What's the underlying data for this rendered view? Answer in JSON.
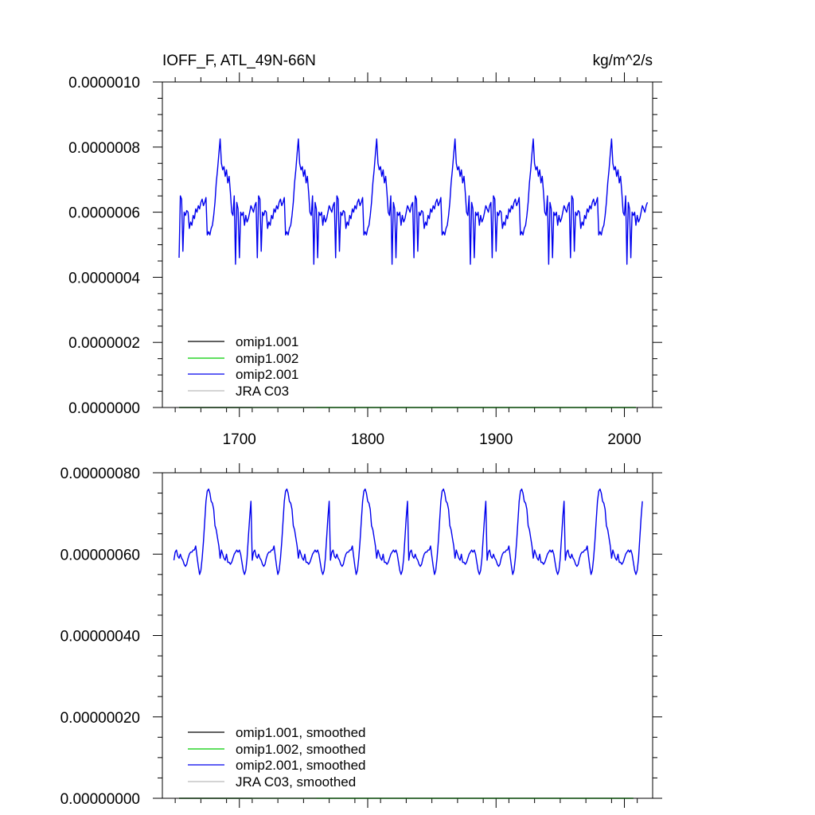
{
  "chart_data": [
    {
      "type": "line",
      "title_left": "IOFF_F, ATL_49N-66N",
      "title_right": "kg/m^2/s",
      "xlim": [
        1640,
        2022
      ],
      "ylim": [
        0,
        1e-06
      ],
      "x_ticks": [
        1700,
        1800,
        1900,
        2000
      ],
      "x_tick_labels": [
        "1700",
        "1800",
        "1900",
        "2000"
      ],
      "y_ticks": [
        0,
        2e-07,
        4e-07,
        6e-07,
        8e-07,
        1e-06
      ],
      "y_tick_labels": [
        "0.0000000",
        "0.0000002",
        "0.0000004",
        "0.0000006",
        "0.0000008",
        "0.0000010"
      ],
      "legend_position": "bottom-left",
      "legend": [
        "omip1.001",
        "omip1.002",
        "omip2.001",
        "JRA C03"
      ],
      "colors": [
        "#000000",
        "#00cc00",
        "#0000ee",
        "#bbbbbb"
      ],
      "series": [
        {
          "name": "omip1.001",
          "color": "#000000",
          "x": [
            1653,
            1710
          ],
          "y": [
            0,
            0
          ]
        },
        {
          "name": "omip1.002",
          "color": "#00cc00",
          "x": [
            1653,
            2009
          ],
          "y": [
            0,
            0
          ]
        },
        {
          "name": "omip2.001",
          "color": "#0000ee",
          "cycle_start": 1653,
          "cycle_length": 61,
          "cycles": 6,
          "x_end": 2018,
          "cycle_offsets": [
            0,
            1,
            2,
            3,
            4,
            5,
            6,
            7,
            8,
            9,
            10,
            11,
            12,
            13,
            14,
            15,
            16,
            17,
            18,
            19,
            20,
            21,
            22,
            23,
            24,
            25,
            26,
            27,
            28,
            29,
            30,
            31,
            32,
            33,
            34,
            35,
            36,
            37,
            38,
            39,
            40,
            41,
            42,
            43,
            44,
            45,
            46,
            47,
            48,
            49,
            50,
            51,
            52,
            53,
            54,
            55,
            56,
            57,
            58,
            59,
            60
          ],
          "cycle_values": [
            4.6e-07,
            6.5e-07,
            6.4e-07,
            4.8e-07,
            6e-07,
            5.9e-07,
            6.05e-07,
            6e-07,
            5.5e-07,
            5.7e-07,
            5.6e-07,
            5.9e-07,
            5.8e-07,
            6.1e-07,
            6e-07,
            6.2e-07,
            6.1e-07,
            6.3e-07,
            6.4e-07,
            6.2e-07,
            6.3e-07,
            6.45e-07,
            5.3e-07,
            5.4e-07,
            5.3e-07,
            5.5e-07,
            5.6e-07,
            5.9e-07,
            6.3e-07,
            6.9e-07,
            7.3e-07,
            7.8e-07,
            8.25e-07,
            7.5e-07,
            7.3e-07,
            7.4e-07,
            7.1e-07,
            7.3e-07,
            6.9e-07,
            7.1e-07,
            6.6e-07,
            6e-07,
            5.9e-07,
            6.5e-07,
            4.4e-07,
            6.3e-07,
            6.1e-07,
            4.6e-07,
            6e-07,
            5.9e-07,
            6e-07,
            5.6e-07,
            5.9e-07,
            5.7e-07,
            5.8e-07,
            6e-07,
            6.2e-07,
            6.1e-07,
            6e-07,
            6.2e-07,
            6.3e-07
          ]
        },
        {
          "name": "JRA C03",
          "color": "#bbbbbb",
          "x": [
            1653,
            1760
          ],
          "y": [
            0,
            0
          ]
        }
      ]
    },
    {
      "type": "line",
      "title_left": "",
      "title_right": "",
      "xlim": [
        1640,
        2022
      ],
      "ylim": [
        0,
        8e-07
      ],
      "x_ticks": [
        1700,
        1800,
        1900,
        2000
      ],
      "y_ticks": [
        0,
        2e-07,
        4e-07,
        6e-07,
        8e-07
      ],
      "y_tick_labels": [
        "0.00000000",
        "0.00000020",
        "0.00000040",
        "0.00000060",
        "0.00000080"
      ],
      "legend_position": "bottom-left",
      "legend": [
        "omip1.001, smoothed",
        "omip1.002, smoothed",
        "omip2.001, smoothed",
        "JRA C03, smoothed"
      ],
      "colors": [
        "#000000",
        "#00cc00",
        "#0000ee",
        "#bbbbbb"
      ],
      "series": [
        {
          "name": "omip1.001, smoothed",
          "color": "#000000",
          "x": [
            1653,
            1710
          ],
          "y": [
            0,
            0
          ]
        },
        {
          "name": "omip1.002, smoothed",
          "color": "#00cc00",
          "x": [
            1653,
            2007
          ],
          "y": [
            0,
            0
          ]
        },
        {
          "name": "omip2.001, smoothed",
          "color": "#0000ee",
          "cycle_start": 1649,
          "cycle_length": 61,
          "cycles": 6,
          "x_end": 2017,
          "cycle_offsets": [
            0,
            1,
            2,
            3,
            4,
            5,
            6,
            7,
            8,
            9,
            10,
            11,
            12,
            13,
            14,
            15,
            16,
            17,
            18,
            19,
            20,
            21,
            22,
            23,
            24,
            25,
            26,
            27,
            28,
            29,
            30,
            31,
            32,
            33,
            34,
            35,
            36,
            37,
            38,
            39,
            40,
            41,
            42,
            43,
            44,
            45,
            46,
            47,
            48,
            49,
            50,
            51,
            52,
            53,
            54,
            55,
            56,
            57,
            58,
            59,
            60
          ],
          "cycle_values": [
            5.85e-07,
            6.05e-07,
            6.1e-07,
            5.95e-07,
            5.9e-07,
            6e-07,
            5.9e-07,
            5.85e-07,
            5.75e-07,
            5.7e-07,
            5.75e-07,
            5.9e-07,
            6e-07,
            6.05e-07,
            6.05e-07,
            6.1e-07,
            6.1e-07,
            6.2e-07,
            5.95e-07,
            5.7e-07,
            5.5e-07,
            5.6e-07,
            5.9e-07,
            6.3e-07,
            6.8e-07,
            7.3e-07,
            7.55e-07,
            7.6e-07,
            7.5e-07,
            7.3e-07,
            7.25e-07,
            7.1e-07,
            6.7e-07,
            6.6e-07,
            6.4e-07,
            6.2e-07,
            5.9e-07,
            6.1e-07,
            6e-07,
            5.9e-07,
            5.85e-07,
            6e-07,
            5.8e-07,
            5.8e-07,
            5.75e-07,
            5.8e-07,
            5.9e-07,
            6e-07,
            6.05e-07,
            6.1e-07,
            6.05e-07,
            6.1e-07,
            6e-07,
            5.8e-07,
            5.6e-07,
            5.5e-07,
            5.6e-07,
            5.9e-07,
            6.4e-07,
            6.9e-07,
            7.3e-07
          ]
        },
        {
          "name": "JRA C03, smoothed",
          "color": "#bbbbbb",
          "x": [
            1653,
            1760
          ],
          "y": [
            0,
            0
          ]
        }
      ]
    }
  ]
}
